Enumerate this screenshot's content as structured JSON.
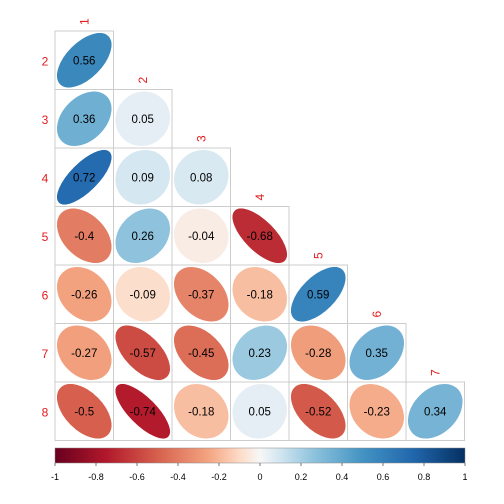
{
  "chart_data": {
    "type": "heatmap",
    "subtype": "correlation-ellipse-lower",
    "variables": [
      "1",
      "2",
      "3",
      "4",
      "5",
      "6",
      "7",
      "8"
    ],
    "rows": [
      {
        "label": "2",
        "values": [
          0.56
        ]
      },
      {
        "label": "3",
        "values": [
          0.36,
          0.05
        ]
      },
      {
        "label": "4",
        "values": [
          0.72,
          0.09,
          0.08
        ]
      },
      {
        "label": "5",
        "values": [
          -0.4,
          0.26,
          -0.04,
          -0.68
        ]
      },
      {
        "label": "6",
        "values": [
          -0.26,
          -0.09,
          -0.37,
          -0.18,
          0.59
        ]
      },
      {
        "label": "7",
        "values": [
          -0.27,
          -0.57,
          -0.45,
          0.23,
          -0.28,
          0.35
        ]
      },
      {
        "label": "8",
        "values": [
          -0.5,
          -0.74,
          -0.18,
          0.05,
          -0.52,
          -0.23,
          0.34
        ]
      }
    ],
    "colorbar": {
      "range": [
        -1,
        1
      ],
      "ticks": [
        "-1",
        "-0.8",
        "-0.6",
        "-0.4",
        "-0.2",
        "0",
        "0.2",
        "0.4",
        "0.6",
        "0.8",
        "1"
      ]
    },
    "colors": {
      "negative_strong": "#67001f",
      "negative_mid": "#d6604d",
      "neutral": "#f7f7f7",
      "positive_mid": "#4393c3",
      "positive_strong": "#053061",
      "label": "#e41a1c",
      "grid": "#cccccc"
    }
  }
}
